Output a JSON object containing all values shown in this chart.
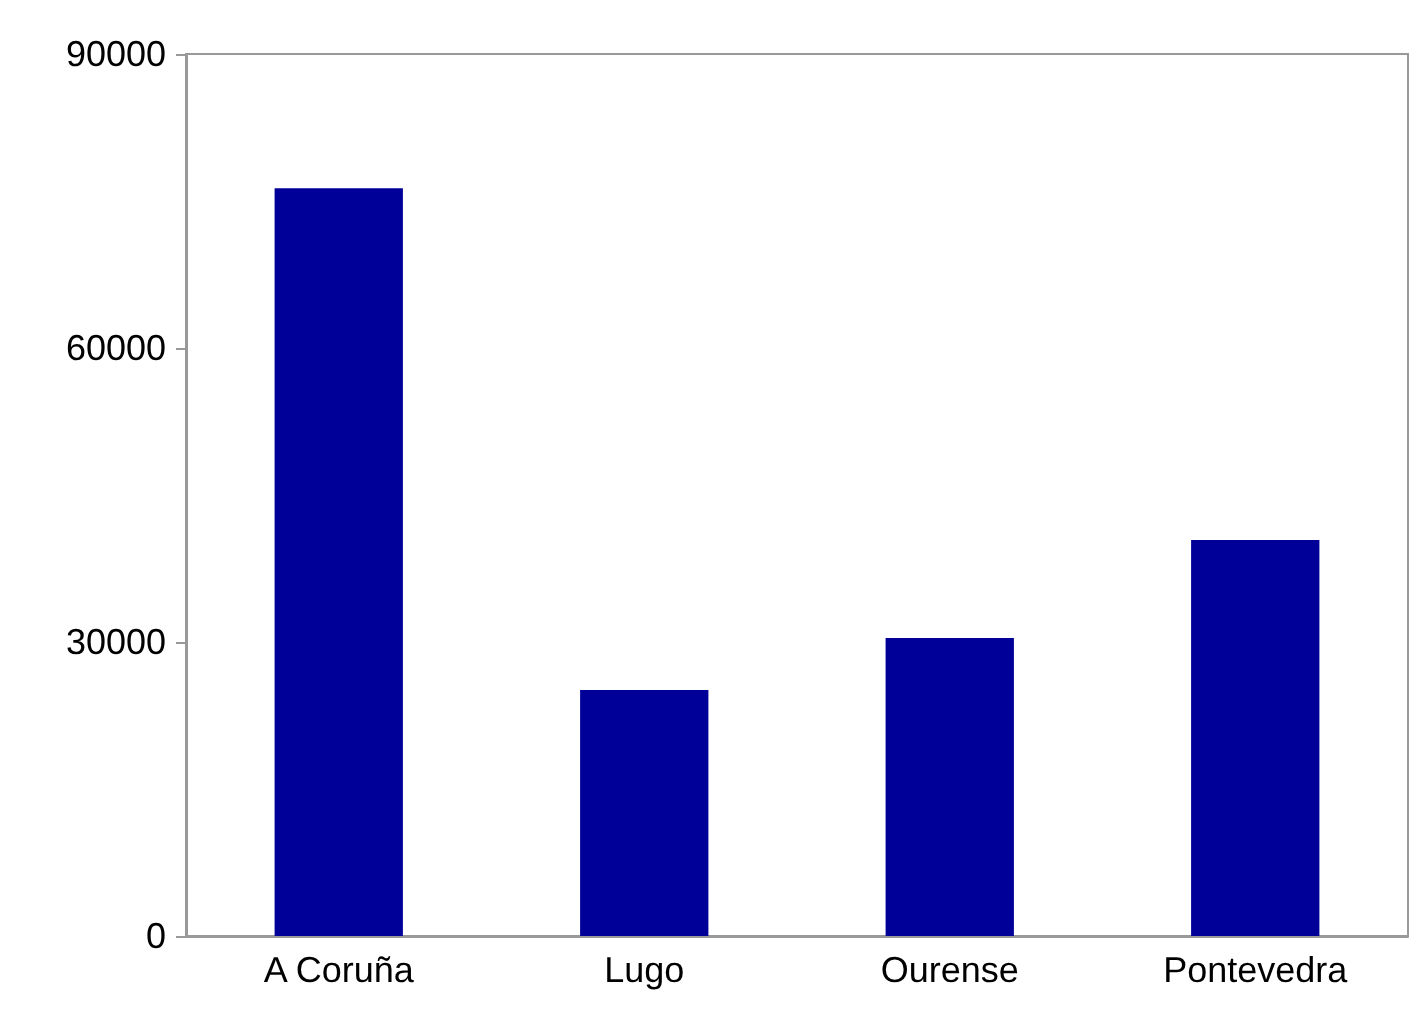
{
  "chart_data": {
    "type": "bar",
    "categories": [
      "A Coruña",
      "Lugo",
      "Ourense",
      "Pontevedra"
    ],
    "values": [
      76300,
      25100,
      30400,
      40400
    ],
    "color": "#000099",
    "ylim": [
      0,
      90000
    ],
    "yticks": [
      0,
      30000,
      60000,
      90000
    ],
    "grid": false
  }
}
